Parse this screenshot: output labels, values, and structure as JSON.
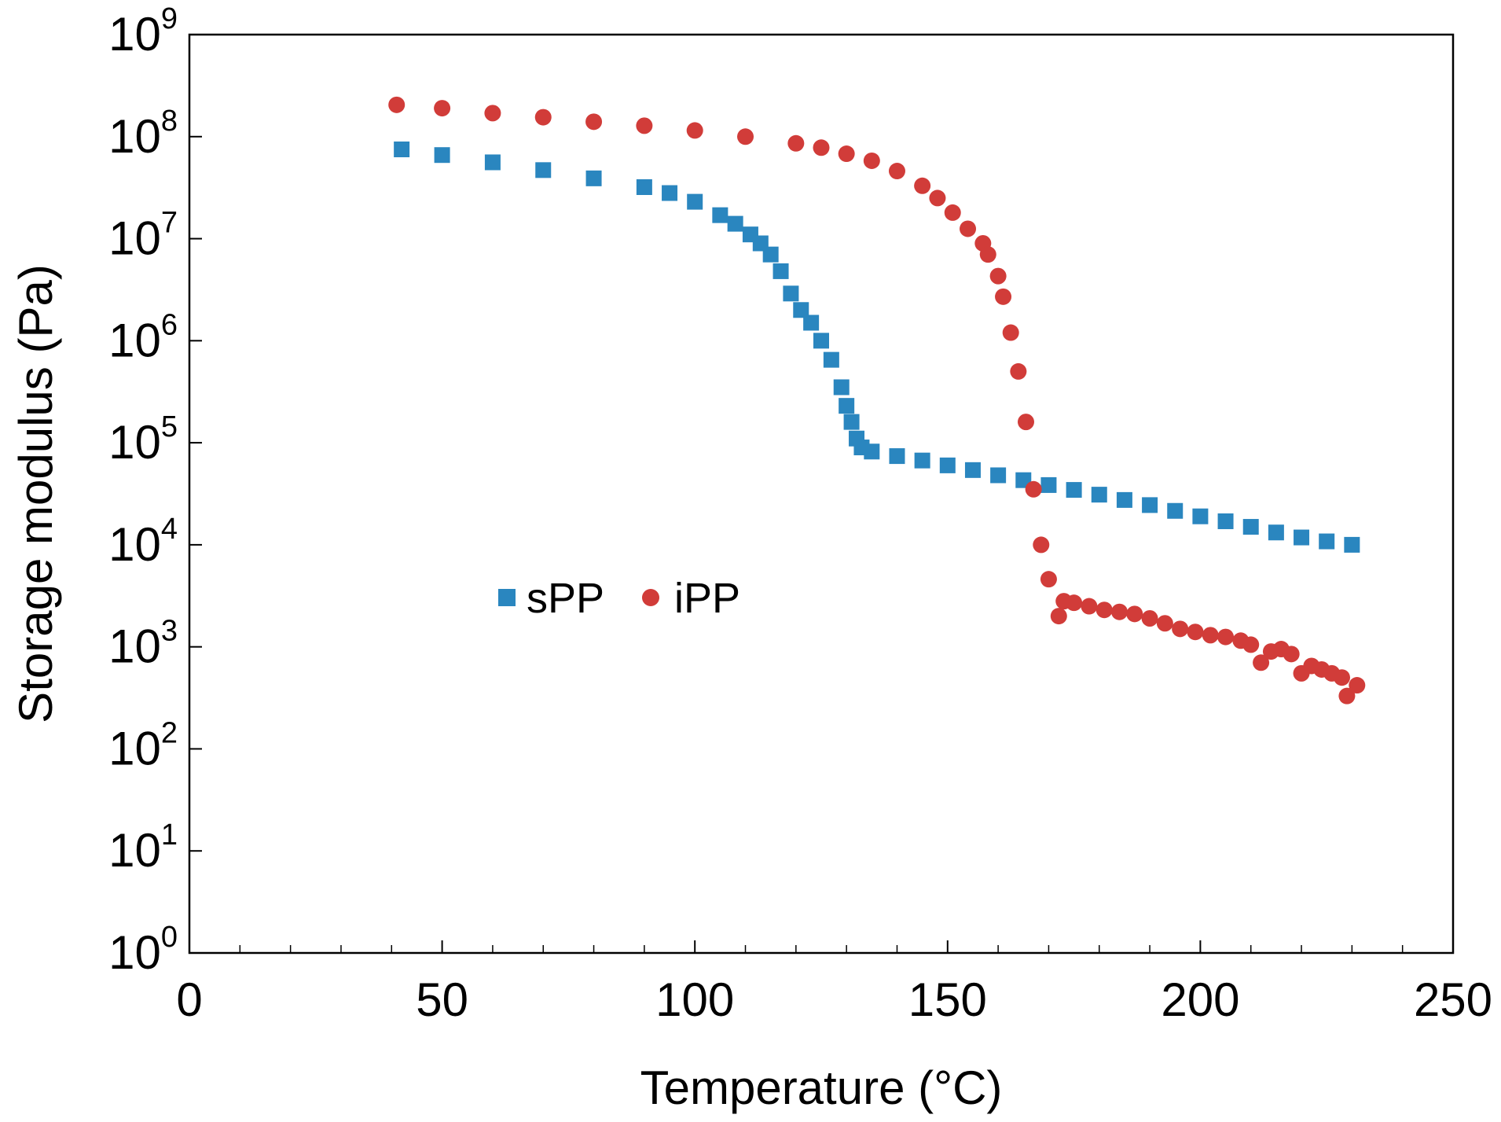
{
  "chart_data": {
    "type": "scatter",
    "title": "",
    "xlabel": "Temperature (°C)",
    "ylabel": "Storage modulus (Pa)",
    "xlim": [
      0,
      250
    ],
    "ylim": [
      1,
      1000000000
    ],
    "yscale": "log",
    "grid": false,
    "legend_placement": "center-left",
    "x_ticks": [
      {
        "value": 0,
        "label": "0"
      },
      {
        "value": 50,
        "label": "50"
      },
      {
        "value": 100,
        "label": "100"
      },
      {
        "value": 150,
        "label": "150"
      },
      {
        "value": 200,
        "label": "200"
      },
      {
        "value": 250,
        "label": "250"
      }
    ],
    "y_ticks": [
      {
        "exp": 0,
        "base": "10",
        "sup": "0"
      },
      {
        "exp": 1,
        "base": "10",
        "sup": "1"
      },
      {
        "exp": 2,
        "base": "10",
        "sup": "2"
      },
      {
        "exp": 3,
        "base": "10",
        "sup": "3"
      },
      {
        "exp": 4,
        "base": "10",
        "sup": "4"
      },
      {
        "exp": 5,
        "base": "10",
        "sup": "5"
      },
      {
        "exp": 6,
        "base": "10",
        "sup": "6"
      },
      {
        "exp": 7,
        "base": "10",
        "sup": "7"
      },
      {
        "exp": 8,
        "base": "10",
        "sup": "8"
      },
      {
        "exp": 9,
        "base": "10",
        "sup": "9"
      }
    ],
    "series": [
      {
        "name": "sPP",
        "marker": "square",
        "color": "#2a86bf",
        "points": [
          [
            42,
            75000000
          ],
          [
            50,
            66000000
          ],
          [
            60,
            56000000
          ],
          [
            70,
            47000000
          ],
          [
            80,
            39000000
          ],
          [
            90,
            32000000
          ],
          [
            95,
            28000000
          ],
          [
            100,
            23000000
          ],
          [
            105,
            17000000
          ],
          [
            108,
            14000000
          ],
          [
            111,
            11000000
          ],
          [
            113,
            9000000
          ],
          [
            115,
            7000000
          ],
          [
            117,
            4800000
          ],
          [
            119,
            2900000
          ],
          [
            121,
            2000000
          ],
          [
            123,
            1500000
          ],
          [
            125,
            1000000
          ],
          [
            127,
            650000
          ],
          [
            129,
            350000
          ],
          [
            130,
            230000
          ],
          [
            131,
            160000
          ],
          [
            132,
            110000
          ],
          [
            133,
            90000
          ],
          [
            135,
            82000
          ],
          [
            140,
            74000
          ],
          [
            145,
            67000
          ],
          [
            150,
            60000
          ],
          [
            155,
            54000
          ],
          [
            160,
            48000
          ],
          [
            165,
            43000
          ],
          [
            170,
            38500
          ],
          [
            175,
            34500
          ],
          [
            180,
            31000
          ],
          [
            185,
            27500
          ],
          [
            190,
            24500
          ],
          [
            195,
            21500
          ],
          [
            200,
            19000
          ],
          [
            205,
            17000
          ],
          [
            210,
            15000
          ],
          [
            215,
            13200
          ],
          [
            220,
            11800
          ],
          [
            225,
            10800
          ],
          [
            230,
            10000
          ]
        ]
      },
      {
        "name": "iPP",
        "marker": "circle",
        "color": "#d13c39",
        "points": [
          [
            41,
            205000000
          ],
          [
            50,
            190000000
          ],
          [
            60,
            170000000
          ],
          [
            70,
            155000000
          ],
          [
            80,
            140000000
          ],
          [
            90,
            128000000
          ],
          [
            100,
            115000000
          ],
          [
            110,
            100000000
          ],
          [
            120,
            86000000
          ],
          [
            125,
            78000000
          ],
          [
            130,
            68000000
          ],
          [
            135,
            58000000
          ],
          [
            140,
            46000000
          ],
          [
            145,
            33000000
          ],
          [
            148,
            25000000
          ],
          [
            151,
            18000000
          ],
          [
            154,
            12500000
          ],
          [
            157,
            9000000
          ],
          [
            158,
            7000000
          ],
          [
            160,
            4300000
          ],
          [
            161,
            2700000
          ],
          [
            162.5,
            1200000
          ],
          [
            164,
            500000
          ],
          [
            165.5,
            160000
          ],
          [
            167,
            35000
          ],
          [
            168.5,
            10000
          ],
          [
            170,
            4600
          ],
          [
            172,
            2000
          ],
          [
            173,
            2800
          ],
          [
            175,
            2700
          ],
          [
            178,
            2500
          ],
          [
            181,
            2300
          ],
          [
            184,
            2200
          ],
          [
            187,
            2100
          ],
          [
            190,
            1900
          ],
          [
            193,
            1700
          ],
          [
            196,
            1500
          ],
          [
            199,
            1400
          ],
          [
            202,
            1300
          ],
          [
            205,
            1250
          ],
          [
            208,
            1150
          ],
          [
            210,
            1050
          ],
          [
            212,
            700
          ],
          [
            214,
            900
          ],
          [
            216,
            950
          ],
          [
            218,
            850
          ],
          [
            220,
            550
          ],
          [
            222,
            650
          ],
          [
            224,
            600
          ],
          [
            226,
            550
          ],
          [
            228,
            500
          ],
          [
            229,
            330
          ],
          [
            231,
            420
          ]
        ]
      }
    ]
  }
}
